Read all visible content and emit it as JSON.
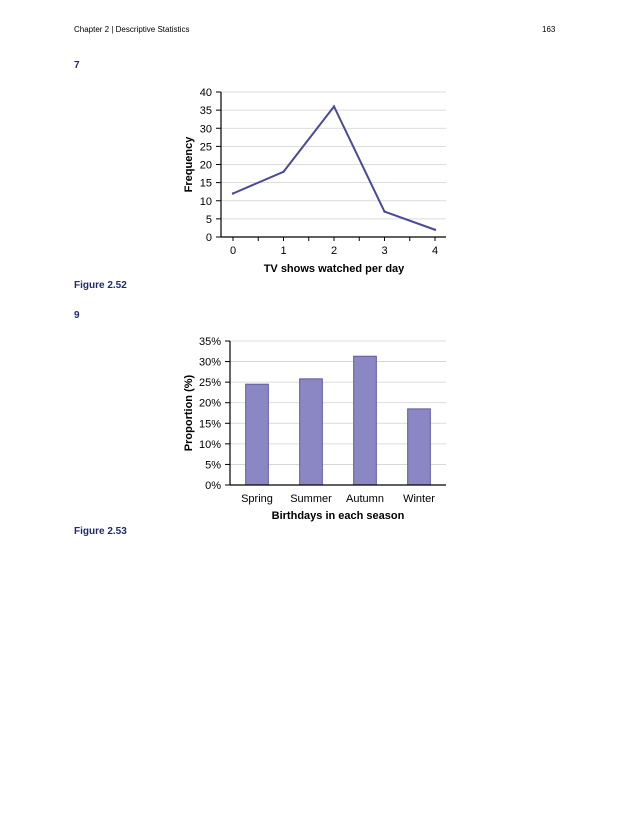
{
  "header": {
    "running_head": "Chapter 2 | Descriptive Statistics",
    "page_number": "163"
  },
  "exercises": [
    {
      "number": "7",
      "caption": "Figure 2.52"
    },
    {
      "number": "9",
      "caption": "Figure 2.53"
    }
  ],
  "colors": {
    "line": "#4a4a96",
    "bar_fill": "#8b87c4",
    "bar_stroke": "#5e5a9e",
    "caption": "#1f2a6e",
    "grid": "#d0d0d0"
  },
  "chart_data": [
    {
      "type": "line",
      "title": "",
      "xlabel": "TV shows watched per day",
      "ylabel": "Frequency",
      "x": [
        0,
        1,
        2,
        3,
        4
      ],
      "series": [
        {
          "name": "Frequency",
          "values": [
            12,
            18,
            36,
            7,
            2
          ]
        }
      ],
      "xlim": [
        0,
        4
      ],
      "ylim": [
        0,
        40
      ],
      "yticks": [
        0,
        5,
        10,
        15,
        20,
        25,
        30,
        35,
        40
      ],
      "xtick_labels": [
        "0",
        "1",
        "2",
        "3",
        "4"
      ],
      "grid": true
    },
    {
      "type": "bar",
      "title": "",
      "xlabel": "Birthdays in each season",
      "ylabel": "Proportion (%)",
      "categories": [
        "Spring",
        "Summer",
        "Autumn",
        "Winter"
      ],
      "values": [
        24.5,
        25.8,
        31.3,
        18.5
      ],
      "ylim": [
        0,
        35
      ],
      "yticks": [
        0,
        5,
        10,
        15,
        20,
        25,
        30,
        35
      ],
      "ytick_labels": [
        "0%",
        "5%",
        "10%",
        "15%",
        "20%",
        "25%",
        "30%",
        "35%"
      ],
      "grid": true
    }
  ]
}
